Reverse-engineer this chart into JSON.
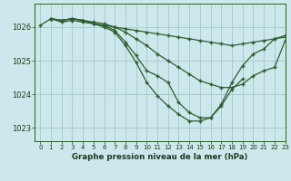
{
  "title": "Graphe pression niveau de la mer (hPa)",
  "background_color": "#cce8ed",
  "grid_color": "#aacccc",
  "line_color": "#2d5c2d",
  "xlim": [
    -0.5,
    23
  ],
  "ylim": [
    1022.6,
    1026.7
  ],
  "yticks": [
    1023,
    1024,
    1025,
    1026
  ],
  "xticks": [
    0,
    1,
    2,
    3,
    4,
    5,
    6,
    7,
    8,
    9,
    10,
    11,
    12,
    13,
    14,
    15,
    16,
    17,
    18,
    19,
    20,
    21,
    22,
    23
  ],
  "series": [
    {
      "x": [
        0,
        1,
        2,
        3,
        4,
        5,
        6,
        7,
        8,
        9,
        10,
        11,
        12,
        13,
        14,
        15,
        16,
        17,
        18,
        19,
        20,
        21,
        22,
        23
      ],
      "y": [
        1026.05,
        1026.25,
        1026.15,
        1026.2,
        1026.15,
        1026.1,
        1026.05,
        1026.0,
        1025.95,
        1025.9,
        1025.85,
        1025.8,
        1025.75,
        1025.7,
        1025.65,
        1025.6,
        1025.55,
        1025.5,
        1025.45,
        1025.5,
        1025.55,
        1025.6,
        1025.65,
        1025.7
      ]
    },
    {
      "x": [
        1,
        2,
        3,
        4,
        5,
        6,
        7,
        8,
        9,
        10,
        11,
        12,
        13,
        14,
        15,
        16,
        17,
        18,
        19,
        20,
        21,
        22,
        23
      ],
      "y": [
        1026.25,
        1026.2,
        1026.25,
        1026.2,
        1026.15,
        1026.1,
        1026.0,
        1025.85,
        1025.65,
        1025.45,
        1025.2,
        1025.0,
        1024.8,
        1024.6,
        1024.4,
        1024.3,
        1024.2,
        1024.2,
        1024.3,
        1024.55,
        1024.7,
        1024.8,
        1025.6
      ]
    },
    {
      "x": [
        1,
        2,
        3,
        4,
        5,
        6,
        7,
        8,
        9,
        10,
        11,
        12,
        13,
        14,
        15,
        16,
        17,
        18,
        19,
        20,
        21,
        22,
        23
      ],
      "y": [
        1026.25,
        1026.2,
        1026.25,
        1026.2,
        1026.1,
        1026.05,
        1025.9,
        1025.55,
        1025.15,
        1024.7,
        1024.55,
        1024.35,
        1023.75,
        1023.45,
        1023.3,
        1023.3,
        1023.7,
        1024.35,
        1024.85,
        1025.2,
        1025.35,
        1025.65,
        1025.75
      ]
    },
    {
      "x": [
        1,
        2,
        3,
        4,
        5,
        6,
        7,
        8,
        9,
        10,
        11,
        12,
        13,
        14,
        15,
        16,
        17,
        18,
        19
      ],
      "y": [
        1026.25,
        1026.2,
        1026.25,
        1026.2,
        1026.1,
        1026.0,
        1025.85,
        1025.45,
        1024.95,
        1024.35,
        1023.95,
        1023.65,
        1023.4,
        1023.2,
        1023.2,
        1023.3,
        1023.65,
        1024.15,
        1024.45
      ]
    }
  ]
}
